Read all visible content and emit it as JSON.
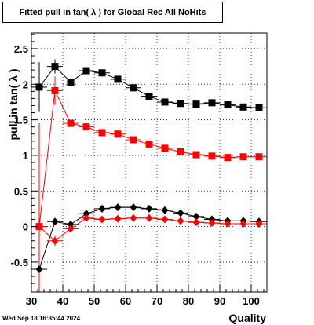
{
  "chart_data": {
    "type": "scatter",
    "title": "Fitted pull in tan( λ ) for Global Rec All NoHits",
    "xlabel": "Quality",
    "ylabel": "pull in tan( λ )",
    "xlim": [
      30,
      105
    ],
    "ylim": [
      -0.92,
      2.72
    ],
    "x_ticks": [
      30,
      40,
      50,
      60,
      70,
      80,
      90,
      100
    ],
    "y_ticks": [
      -0.5,
      0,
      0.5,
      1,
      1.5,
      2,
      2.5
    ],
    "grid": true,
    "series": [
      {
        "name": "",
        "marker": "square",
        "color": "#000000",
        "x": [
          32.5,
          37.5,
          42.5,
          47.5,
          52.5,
          57.5,
          62.5,
          67.5,
          72.5,
          77.5,
          82.5,
          87.5,
          92.5,
          97.5,
          102.5
        ],
        "y": [
          1.96,
          2.25,
          2.03,
          2.19,
          2.16,
          2.07,
          1.95,
          1.83,
          1.75,
          1.73,
          1.72,
          1.74,
          1.71,
          1.68,
          1.67
        ],
        "yerr": [
          0.35,
          0.1,
          0.05,
          0.04,
          0.03,
          0.03,
          0.03,
          0.03,
          0.03,
          0.03,
          0.03,
          0.03,
          0.03,
          0.03,
          0.03
        ]
      },
      {
        "name": "",
        "marker": "square",
        "color": "#ff0000",
        "x": [
          32.5,
          37.5,
          42.5,
          47.5,
          52.5,
          57.5,
          62.5,
          67.5,
          72.5,
          77.5,
          82.5,
          87.5,
          92.5,
          97.5,
          102.5
        ],
        "y": [
          0.0,
          1.91,
          1.45,
          1.4,
          1.32,
          1.3,
          1.22,
          1.16,
          1.1,
          1.05,
          1.01,
          0.99,
          0.97,
          0.98,
          0.98
        ],
        "yerr": [
          1.45,
          0.2,
          0.05,
          0.04,
          0.03,
          0.03,
          0.03,
          0.03,
          0.03,
          0.03,
          0.03,
          0.03,
          0.03,
          0.03,
          0.03
        ]
      },
      {
        "name": "",
        "marker": "diamond",
        "color": "#000000",
        "x": [
          32.5,
          37.5,
          42.5,
          47.5,
          52.5,
          57.5,
          62.5,
          67.5,
          72.5,
          77.5,
          82.5,
          87.5,
          92.5,
          97.5,
          102.5
        ],
        "y": [
          -0.6,
          0.07,
          0.03,
          0.18,
          0.25,
          0.27,
          0.27,
          0.25,
          0.23,
          0.19,
          0.14,
          0.1,
          0.08,
          0.08,
          0.07
        ],
        "yerr": [
          0.05,
          0.04,
          0.03,
          0.03,
          0.02,
          0.02,
          0.02,
          0.02,
          0.02,
          0.02,
          0.02,
          0.02,
          0.02,
          0.02,
          0.02
        ]
      },
      {
        "name": "",
        "marker": "diamond",
        "color": "#ff0000",
        "x": [
          32.5,
          37.5,
          42.5,
          47.5,
          52.5,
          57.5,
          62.5,
          67.5,
          72.5,
          77.5,
          82.5,
          87.5,
          92.5,
          97.5,
          102.5
        ],
        "y": [
          0.0,
          -0.2,
          -0.03,
          0.12,
          0.1,
          0.11,
          0.12,
          0.12,
          0.1,
          0.08,
          0.06,
          0.05,
          0.04,
          0.04,
          0.04
        ],
        "yerr": [
          0.1,
          0.08,
          0.04,
          0.03,
          0.02,
          0.02,
          0.02,
          0.02,
          0.02,
          0.02,
          0.02,
          0.02,
          0.02,
          0.02,
          0.02
        ]
      }
    ]
  },
  "timestamp": "Wed Sep 18 16:35:44 2024"
}
